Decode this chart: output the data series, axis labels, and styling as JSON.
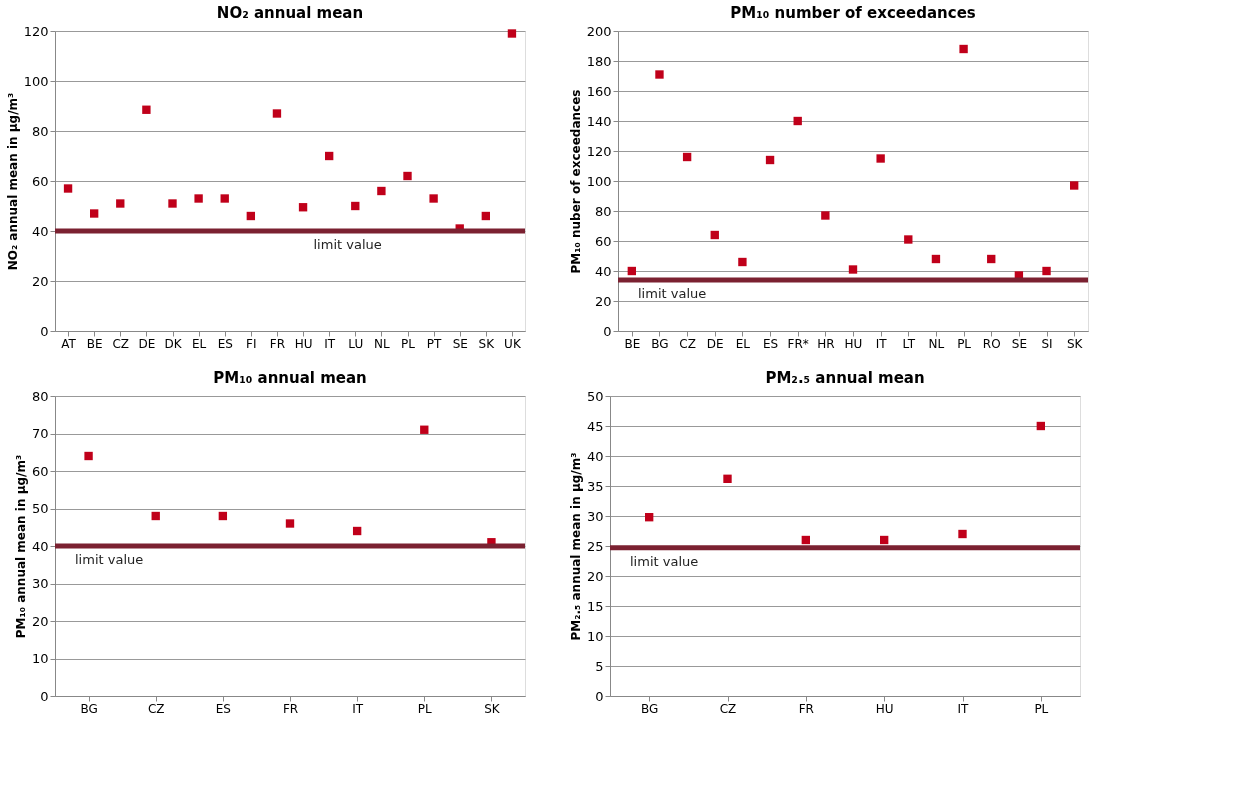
{
  "chart_data": [
    {
      "type": "scatter",
      "title": "NO₂ annual mean",
      "ylabel": "NO₂ annual mean in µg/m³",
      "categories": [
        "AT",
        "BE",
        "CZ",
        "DE",
        "DK",
        "EL",
        "ES",
        "FI",
        "FR",
        "HU",
        "IT",
        "LU",
        "NL",
        "PL",
        "PT",
        "SE",
        "SK",
        "UK"
      ],
      "series": [
        {
          "color": "#c0001a",
          "values": [
            57,
            47,
            51,
            88.5,
            51,
            53,
            53,
            46,
            87,
            49.5,
            70,
            50,
            56,
            62,
            53,
            41,
            46,
            119
          ]
        }
      ],
      "ylim": [
        0,
        120
      ],
      "yticks": [
        0,
        20,
        40,
        60,
        80,
        100,
        120
      ],
      "grid": "y",
      "marker": "square",
      "legend": false,
      "ref_lines": [
        {
          "axis": "y",
          "value": 40,
          "label": "limit value",
          "color": "#7b2131"
        }
      ]
    },
    {
      "type": "scatter",
      "title": "PM₁₀ number of exceedances",
      "ylabel": "PM₁₀ nuber of exceedances",
      "categories": [
        "BE",
        "BG",
        "CZ",
        "DE",
        "EL",
        "ES",
        "FR*",
        "HR",
        "HU",
        "IT",
        "LT",
        "NL",
        "PL",
        "RO",
        "SE",
        "SI",
        "SK"
      ],
      "series": [
        {
          "color": "#c0001a",
          "values": [
            40,
            171,
            116,
            64,
            46,
            114,
            140,
            77,
            41,
            115,
            61,
            48,
            188,
            48,
            37,
            40,
            97
          ]
        }
      ],
      "ylim": [
        0,
        200
      ],
      "yticks": [
        0,
        20,
        40,
        60,
        80,
        100,
        120,
        140,
        160,
        180,
        200
      ],
      "grid": "y",
      "marker": "square",
      "legend": false,
      "ref_lines": [
        {
          "axis": "y",
          "value": 34,
          "label": "limit value",
          "color": "#7b2131"
        }
      ]
    },
    {
      "type": "scatter",
      "title": "PM₁₀ annual mean",
      "ylabel": "PM₁₀ annual mean in µg/m³",
      "categories": [
        "BG",
        "CZ",
        "ES",
        "FR",
        "IT",
        "PL",
        "SK"
      ],
      "series": [
        {
          "color": "#c0001a",
          "values": [
            64,
            48,
            48,
            46,
            44,
            71,
            41
          ]
        }
      ],
      "ylim": [
        0,
        80
      ],
      "yticks": [
        0,
        10,
        20,
        30,
        40,
        50,
        60,
        70,
        80
      ],
      "grid": "y",
      "marker": "square",
      "legend": false,
      "ref_lines": [
        {
          "axis": "y",
          "value": 40,
          "label": "limit value",
          "color": "#7b2131"
        }
      ]
    },
    {
      "type": "scatter",
      "title": "PM₂.₅ annual mean",
      "ylabel": "PM₂.₅ annual mean in µg/m³",
      "categories": [
        "BG",
        "CZ",
        "FR",
        "HU",
        "IT",
        "PL"
      ],
      "series": [
        {
          "color": "#c0001a",
          "values": [
            29.8,
            36.2,
            26,
            26,
            27,
            45
          ]
        }
      ],
      "ylim": [
        0,
        50
      ],
      "yticks": [
        0,
        5,
        10,
        15,
        20,
        25,
        30,
        35,
        40,
        45,
        50
      ],
      "grid": "y",
      "marker": "square",
      "legend": false,
      "ref_lines": [
        {
          "axis": "y",
          "value": 24.7,
          "label": "limit value",
          "color": "#7b2131"
        }
      ]
    }
  ]
}
